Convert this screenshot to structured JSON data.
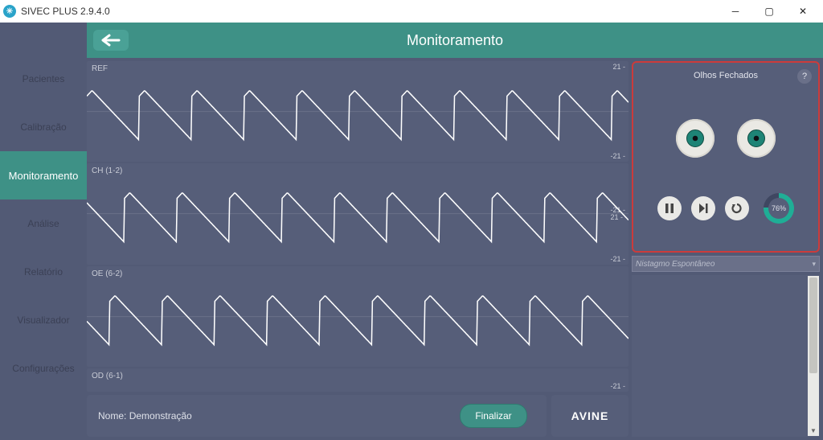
{
  "window": {
    "title": "SIVEC PLUS 2.9.4.0",
    "icon_glyph": "✳"
  },
  "sidebar": {
    "items": [
      {
        "label": "Pacientes",
        "active": false
      },
      {
        "label": "Calibração",
        "active": false
      },
      {
        "label": "Monitoramento",
        "active": true
      },
      {
        "label": "Análise",
        "active": false
      },
      {
        "label": "Relatório",
        "active": false
      },
      {
        "label": "Visualizador",
        "active": false
      },
      {
        "label": "Configurações",
        "active": false
      }
    ]
  },
  "topbar": {
    "title": "Monitoramento"
  },
  "channels": [
    {
      "label": "REF",
      "scale_top": "21 -",
      "scale_bot": "-21 -",
      "scale_mid_top": "",
      "scale_mid_bot": ""
    },
    {
      "label": "CH (1-2)",
      "scale_top": "",
      "scale_bot": "-21 -",
      "scale_mid_top": "-21 -",
      "scale_mid_bot": "21 -"
    },
    {
      "label": "OE (6-2)",
      "scale_top": "",
      "scale_bot": "",
      "scale_mid_top": "",
      "scale_mid_bot": ""
    },
    {
      "label": "OD (6-1)",
      "scale_top": "",
      "scale_bot": "-21 -",
      "scale_mid_top": "",
      "scale_mid_bot": ""
    }
  ],
  "waveform": {
    "stroke": "#ffffff",
    "background": "#565e79",
    "pattern_period": 64,
    "amplitude": 0.55
  },
  "footer": {
    "name_label": "Nome:",
    "name_value": "Demonstração",
    "finalize_label": "Finalizar",
    "brand": "AVINE"
  },
  "eyes_panel": {
    "title": "Olhos Fechados",
    "help_glyph": "?",
    "progress_pct": 76,
    "progress_label": "76%",
    "ring_fg": "#1fae96",
    "ring_bg": "#3f4761",
    "eyeball_color": "#eae9e4",
    "iris_outer": "#1e8476",
    "pupil": "#0f1014"
  },
  "dropdown": {
    "placeholder": "Nistagmo Espontâneo"
  },
  "colors": {
    "accent": "#3e9186",
    "panel": "#565e79",
    "app_bg": "#525a75",
    "danger_border": "#cc3b3b",
    "text_dim": "#c9ccd6"
  }
}
